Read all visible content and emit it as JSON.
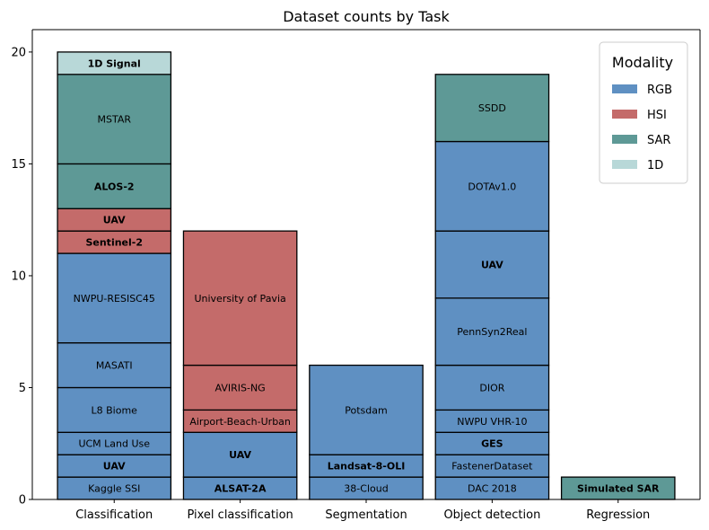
{
  "chart_data": {
    "type": "bar",
    "stacked": true,
    "title": "Dataset counts by Task",
    "xlabel": "",
    "ylabel": "",
    "ylim": [
      0,
      21
    ],
    "yticks": [
      0,
      5,
      10,
      15,
      20
    ],
    "grid": false,
    "legend": {
      "title": "Modality",
      "placement": "top-right",
      "entries": [
        {
          "label": "RGB",
          "color": "#5f90c2"
        },
        {
          "label": "HSI",
          "color": "#c46b6a"
        },
        {
          "label": "SAR",
          "color": "#5e9996"
        },
        {
          "label": "1D",
          "color": "#b8d8d8"
        }
      ]
    },
    "categories": [
      "Classification",
      "Pixel classification",
      "Segmentation",
      "Object detection",
      "Regression"
    ],
    "stacks": [
      {
        "category": "Classification",
        "segments": [
          {
            "label": "Kaggle SSI",
            "value": 1,
            "modality": "RGB",
            "bold": false
          },
          {
            "label": "UAV",
            "value": 1,
            "modality": "RGB",
            "bold": true
          },
          {
            "label": "UCM Land Use",
            "value": 1,
            "modality": "RGB",
            "bold": false
          },
          {
            "label": "L8 Biome",
            "value": 2,
            "modality": "RGB",
            "bold": false
          },
          {
            "label": "MASATI",
            "value": 2,
            "modality": "RGB",
            "bold": false
          },
          {
            "label": "NWPU-RESISC45",
            "value": 4,
            "modality": "RGB",
            "bold": false
          },
          {
            "label": "Sentinel-2",
            "value": 1,
            "modality": "HSI",
            "bold": true
          },
          {
            "label": "UAV",
            "value": 1,
            "modality": "HSI",
            "bold": true
          },
          {
            "label": "ALOS-2",
            "value": 2,
            "modality": "SAR",
            "bold": true
          },
          {
            "label": "MSTAR",
            "value": 4,
            "modality": "SAR",
            "bold": false
          },
          {
            "label": "1D Signal",
            "value": 1,
            "modality": "1D",
            "bold": true
          }
        ]
      },
      {
        "category": "Pixel classification",
        "segments": [
          {
            "label": "ALSAT-2A",
            "value": 1,
            "modality": "RGB",
            "bold": true
          },
          {
            "label": "UAV",
            "value": 2,
            "modality": "RGB",
            "bold": true
          },
          {
            "label": "Airport-Beach-Urban",
            "value": 1,
            "modality": "HSI",
            "bold": false
          },
          {
            "label": "AVIRIS-NG",
            "value": 2,
            "modality": "HSI",
            "bold": false
          },
          {
            "label": "University of Pavia",
            "value": 6,
            "modality": "HSI",
            "bold": false
          }
        ]
      },
      {
        "category": "Segmentation",
        "segments": [
          {
            "label": "38-Cloud",
            "value": 1,
            "modality": "RGB",
            "bold": false
          },
          {
            "label": "Landsat-8-OLI",
            "value": 1,
            "modality": "RGB",
            "bold": true
          },
          {
            "label": "Potsdam",
            "value": 4,
            "modality": "RGB",
            "bold": false
          }
        ]
      },
      {
        "category": "Object detection",
        "segments": [
          {
            "label": "DAC 2018",
            "value": 1,
            "modality": "RGB",
            "bold": false
          },
          {
            "label": "FastenerDataset",
            "value": 1,
            "modality": "RGB",
            "bold": false
          },
          {
            "label": "GES",
            "value": 1,
            "modality": "RGB",
            "bold": true
          },
          {
            "label": "NWPU VHR-10",
            "value": 1,
            "modality": "RGB",
            "bold": false
          },
          {
            "label": "DIOR",
            "value": 2,
            "modality": "RGB",
            "bold": false
          },
          {
            "label": "PennSyn2Real",
            "value": 3,
            "modality": "RGB",
            "bold": false
          },
          {
            "label": "UAV",
            "value": 3,
            "modality": "RGB",
            "bold": true
          },
          {
            "label": "DOTAv1.0",
            "value": 4,
            "modality": "RGB",
            "bold": false
          },
          {
            "label": "SSDD",
            "value": 3,
            "modality": "SAR",
            "bold": false
          }
        ]
      },
      {
        "category": "Regression",
        "segments": [
          {
            "label": "Simulated SAR",
            "value": 1,
            "modality": "SAR",
            "bold": true
          }
        ]
      }
    ]
  }
}
